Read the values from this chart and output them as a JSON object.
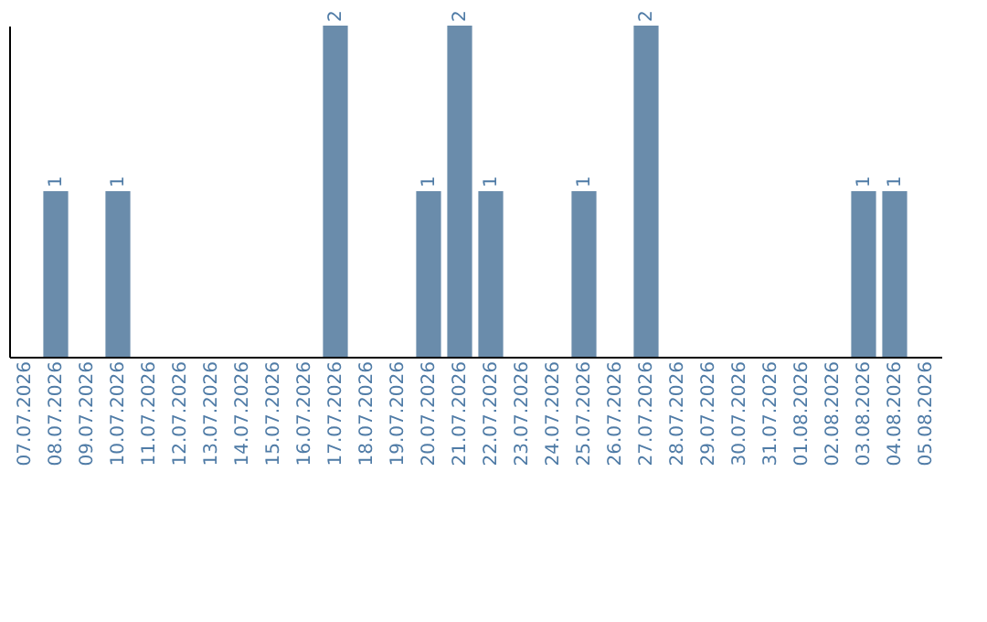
{
  "chart_data": {
    "type": "bar",
    "categories": [
      "07.07.2026",
      "08.07.2026",
      "09.07.2026",
      "10.07.2026",
      "11.07.2026",
      "12.07.2026",
      "13.07.2026",
      "14.07.2026",
      "15.07.2026",
      "16.07.2026",
      "17.07.2026",
      "18.07.2026",
      "19.07.2026",
      "20.07.2026",
      "21.07.2026",
      "22.07.2026",
      "23.07.2026",
      "24.07.2026",
      "25.07.2026",
      "26.07.2026",
      "27.07.2026",
      "28.07.2026",
      "29.07.2026",
      "30.07.2026",
      "31.07.2026",
      "01.08.2026",
      "02.08.2026",
      "03.08.2026",
      "04.08.2026",
      "05.08.2026"
    ],
    "series": [
      {
        "color": "#6a8cab",
        "values": [
          0,
          1,
          0,
          1,
          0,
          0,
          0,
          0,
          0,
          0,
          2,
          0,
          0,
          1,
          2,
          1,
          0,
          0,
          1,
          0,
          2,
          0,
          0,
          0,
          0,
          0,
          0,
          1,
          1,
          0
        ],
        "value_labels": [
          null,
          "1",
          null,
          "1",
          null,
          null,
          null,
          null,
          null,
          null,
          "2",
          null,
          null,
          "1",
          "2",
          "1",
          null,
          null,
          "1",
          null,
          "2",
          null,
          null,
          null,
          null,
          null,
          null,
          "1",
          "1",
          null
        ]
      }
    ],
    "grid": false,
    "tick_labels": "x"
  }
}
